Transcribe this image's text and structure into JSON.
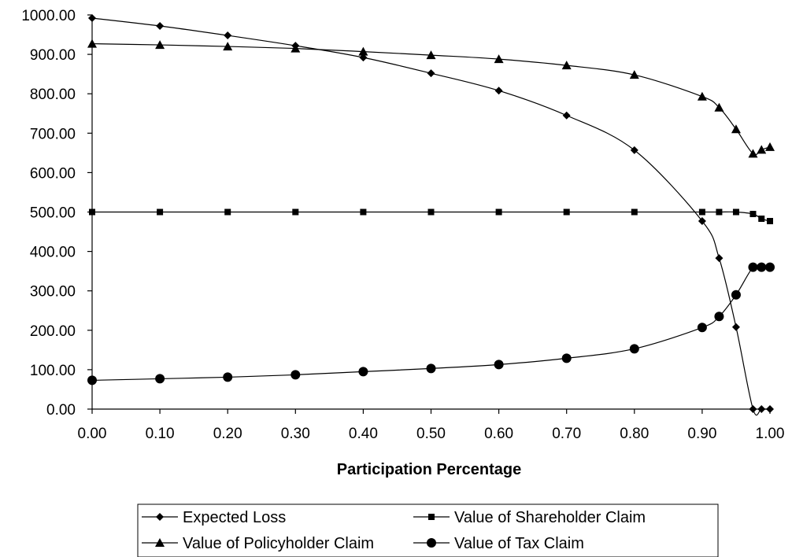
{
  "chart_data": {
    "type": "line",
    "title": "",
    "xlabel": "Participation Percentage",
    "ylabel": "",
    "xlim": [
      0,
      1
    ],
    "ylim": [
      0,
      1000
    ],
    "x_ticks": [
      "0.00",
      "0.10",
      "0.20",
      "0.30",
      "0.40",
      "0.50",
      "0.60",
      "0.70",
      "0.80",
      "0.90",
      "1.00"
    ],
    "y_ticks": [
      "0.00",
      "100.00",
      "200.00",
      "300.00",
      "400.00",
      "500.00",
      "600.00",
      "700.00",
      "800.00",
      "900.00",
      "1000.00"
    ],
    "grid": false,
    "legend_position": "bottom",
    "series": [
      {
        "name": "Expected Loss",
        "marker": "diamond",
        "x": [
          0,
          0.1,
          0.2,
          0.3,
          0.4,
          0.5,
          0.6,
          0.7,
          0.8,
          0.9,
          0.925,
          0.95,
          0.975,
          0.9875,
          1.0
        ],
        "values": [
          992,
          972,
          948,
          922,
          892,
          852,
          808,
          745,
          657,
          477,
          383,
          208,
          0,
          0,
          0
        ]
      },
      {
        "name": "Value of Shareholder Claim",
        "marker": "square",
        "x": [
          0,
          0.1,
          0.2,
          0.3,
          0.4,
          0.5,
          0.6,
          0.7,
          0.8,
          0.9,
          0.925,
          0.95,
          0.975,
          0.9875,
          1.0
        ],
        "values": [
          500,
          500,
          500,
          500,
          500,
          500,
          500,
          500,
          500,
          500,
          500,
          500,
          495,
          483,
          477
        ]
      },
      {
        "name": "Value of Policyholder Claim",
        "marker": "triangle",
        "x": [
          0,
          0.1,
          0.2,
          0.3,
          0.4,
          0.5,
          0.6,
          0.7,
          0.8,
          0.9,
          0.925,
          0.95,
          0.975,
          0.9875,
          1.0
        ],
        "values": [
          927,
          924,
          920,
          915,
          907,
          898,
          888,
          872,
          848,
          793,
          765,
          710,
          648,
          658,
          665
        ]
      },
      {
        "name": "Value of Tax Claim",
        "marker": "circle",
        "x": [
          0,
          0.1,
          0.2,
          0.3,
          0.4,
          0.5,
          0.6,
          0.7,
          0.8,
          0.9,
          0.925,
          0.95,
          0.975,
          0.9875,
          1.0
        ],
        "values": [
          73,
          77,
          81,
          87,
          95,
          103,
          113,
          129,
          153,
          207,
          235,
          290,
          360,
          360,
          360
        ]
      }
    ]
  }
}
